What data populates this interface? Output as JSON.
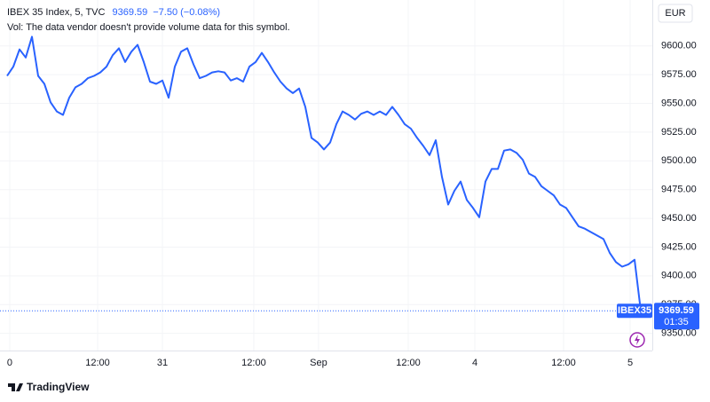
{
  "chart_data": {
    "type": "line",
    "title": "IBEX 35 Index, 5, TVC",
    "last_price": 9369.59,
    "change_label": "−7.50 (−0.08%)",
    "subtitle": "Vol: The data vendor doesn't provide volume data for this symbol.",
    "currency": "EUR",
    "symbol_label": "IBEX35",
    "countdown": "01:35",
    "brand": "TradingView",
    "color": "#2962ff",
    "values": [
      9574,
      9582,
      9597,
      9590,
      9608,
      9574,
      9567,
      9551,
      9543,
      9540,
      9555,
      9564,
      9567,
      9572,
      9574,
      9577,
      9582,
      9592,
      9598,
      9586,
      9595,
      9601,
      9586,
      9569,
      9567,
      9570,
      9555,
      9582,
      9595,
      9598,
      9584,
      9572,
      9574,
      9577,
      9578,
      9577,
      9570,
      9572,
      9569,
      9582,
      9586,
      9594,
      9586,
      9577,
      9569,
      9563,
      9559,
      9563,
      9547,
      9520,
      9516,
      9510,
      9516,
      9532,
      9543,
      9540,
      9536,
      9541,
      9543,
      9540,
      9543,
      9540,
      9547,
      9540,
      9532,
      9528,
      9520,
      9513,
      9505,
      9518,
      9486,
      9462,
      9474,
      9482,
      9466,
      9459,
      9451,
      9482,
      9493,
      9493,
      9509,
      9510,
      9507,
      9501,
      9489,
      9486,
      9478,
      9474,
      9470,
      9462,
      9459,
      9451,
      9443,
      9441,
      9438,
      9435,
      9432,
      9420,
      9412,
      9408,
      9410,
      9414,
      9369.59
    ],
    "xlim": [
      -1.14,
      103.86
    ],
    "xticks": [
      {
        "value": 0.43,
        "label": "0"
      },
      {
        "value": 14.57,
        "label": "12:00"
      },
      {
        "value": 25,
        "label": "31"
      },
      {
        "value": 39.71,
        "label": "12:00"
      },
      {
        "value": 50.14,
        "label": "Sep"
      },
      {
        "value": 64.57,
        "label": "12:00"
      },
      {
        "value": 75.29,
        "label": "4"
      },
      {
        "value": 89.57,
        "label": "12:00"
      },
      {
        "value": 100.29,
        "label": "5"
      }
    ],
    "ylim": [
      9335,
      9640
    ],
    "yticks": [
      {
        "value": 9350,
        "label": "9350.00"
      },
      {
        "value": 9375,
        "label": "9375.00"
      },
      {
        "value": 9400,
        "label": "9400.00"
      },
      {
        "value": 9425,
        "label": "9425.00"
      },
      {
        "value": 9450,
        "label": "9450.00"
      },
      {
        "value": 9475,
        "label": "9475.00"
      },
      {
        "value": 9500,
        "label": "9500.00"
      },
      {
        "value": 9525,
        "label": "9525.00"
      },
      {
        "value": 9550,
        "label": "9550.00"
      },
      {
        "value": 9575,
        "label": "9575.00"
      },
      {
        "value": 9600,
        "label": "9600.00"
      }
    ],
    "grid": true
  }
}
